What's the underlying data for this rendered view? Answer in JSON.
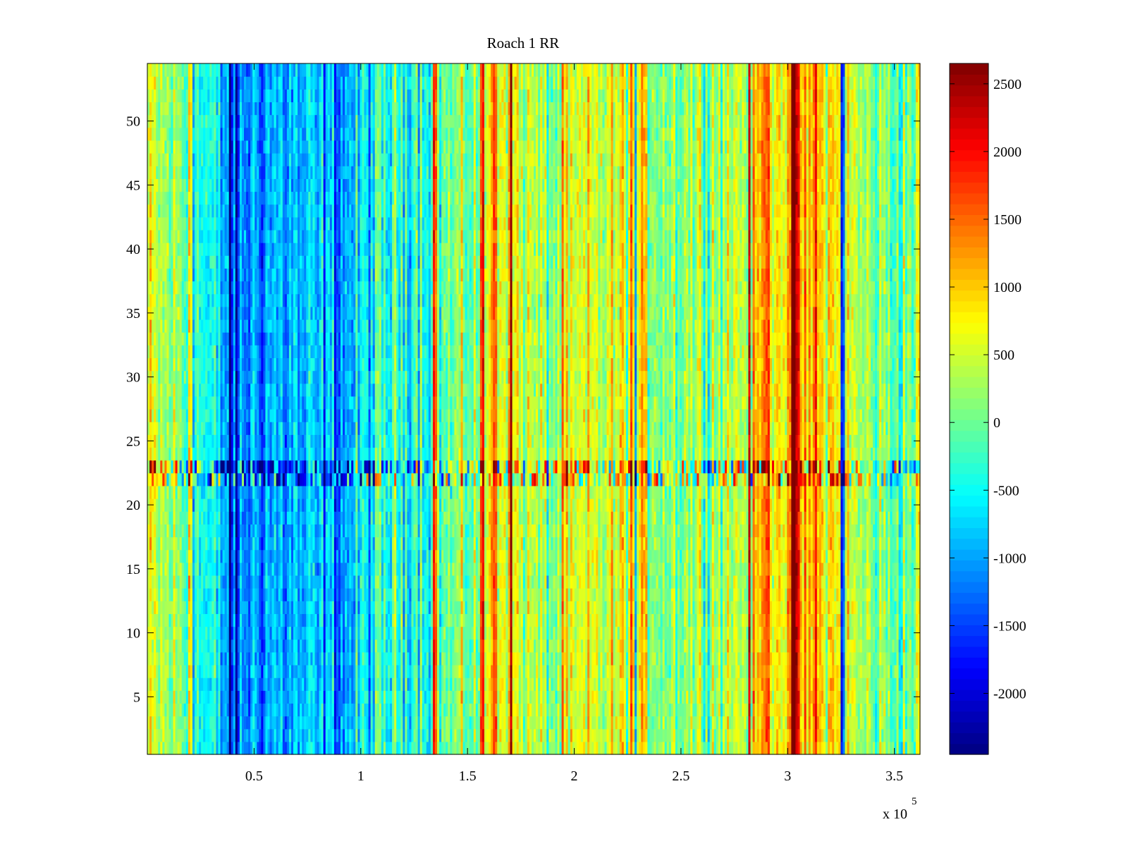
{
  "chart_data": {
    "type": "heatmap",
    "title": "Roach 1 RR",
    "xlabel": "",
    "ylabel": "",
    "x_scale_label": "x 10",
    "x_scale_exponent": "5",
    "xlim": [
      0,
      362000
    ],
    "ylim": [
      0.5,
      54.5
    ],
    "rows": 54,
    "columns": 360,
    "x_ticks": [
      {
        "value": 50000,
        "label": "0.5"
      },
      {
        "value": 100000,
        "label": "1"
      },
      {
        "value": 150000,
        "label": "1.5"
      },
      {
        "value": 200000,
        "label": "2"
      },
      {
        "value": 250000,
        "label": "2.5"
      },
      {
        "value": 300000,
        "label": "3"
      },
      {
        "value": 350000,
        "label": "3.5"
      }
    ],
    "y_ticks": [
      {
        "value": 5,
        "label": "5"
      },
      {
        "value": 10,
        "label": "10"
      },
      {
        "value": 15,
        "label": "15"
      },
      {
        "value": 20,
        "label": "20"
      },
      {
        "value": 25,
        "label": "25"
      },
      {
        "value": 30,
        "label": "30"
      },
      {
        "value": 35,
        "label": "35"
      },
      {
        "value": 40,
        "label": "40"
      },
      {
        "value": 45,
        "label": "45"
      },
      {
        "value": 50,
        "label": "50"
      }
    ],
    "colorbar": {
      "colormap": "jet",
      "clim": [
        -2450,
        2650
      ],
      "ticks": [
        {
          "value": 2500,
          "label": "2500"
        },
        {
          "value": 2000,
          "label": "2000"
        },
        {
          "value": 1500,
          "label": "1500"
        },
        {
          "value": 1000,
          "label": "1000"
        },
        {
          "value": 500,
          "label": "500"
        },
        {
          "value": 0,
          "label": "0"
        },
        {
          "value": -500,
          "label": "-500"
        },
        {
          "value": -1000,
          "label": "-1000"
        },
        {
          "value": -1500,
          "label": "-1500"
        },
        {
          "value": -2000,
          "label": "-2000"
        }
      ]
    },
    "column_trend": [
      {
        "x": 0,
        "value": 400
      },
      {
        "x": 15000,
        "value": 100
      },
      {
        "x": 25000,
        "value": -400
      },
      {
        "x": 40000,
        "value": -1100
      },
      {
        "x": 60000,
        "value": -900
      },
      {
        "x": 75000,
        "value": -1000
      },
      {
        "x": 90000,
        "value": -1000
      },
      {
        "x": 105000,
        "value": -600
      },
      {
        "x": 120000,
        "value": -200
      },
      {
        "x": 140000,
        "value": -100
      },
      {
        "x": 155000,
        "value": 200
      },
      {
        "x": 160000,
        "value": 800
      },
      {
        "x": 170000,
        "value": 700
      },
      {
        "x": 185000,
        "value": 100
      },
      {
        "x": 200000,
        "value": 300
      },
      {
        "x": 215000,
        "value": 500
      },
      {
        "x": 230000,
        "value": 600
      },
      {
        "x": 245000,
        "value": 200
      },
      {
        "x": 260000,
        "value": 300
      },
      {
        "x": 280000,
        "value": 500
      },
      {
        "x": 290000,
        "value": 1100
      },
      {
        "x": 305000,
        "value": 900
      },
      {
        "x": 320000,
        "value": 800
      },
      {
        "x": 335000,
        "value": 200
      },
      {
        "x": 350000,
        "value": 0
      },
      {
        "x": 362000,
        "value": 200
      }
    ],
    "stripes": [
      {
        "x": 39000,
        "delta": -1300
      },
      {
        "x": 42000,
        "delta": -800
      },
      {
        "x": 20000,
        "delta": 1200
      },
      {
        "x": 135000,
        "delta": 1800
      },
      {
        "x": 157000,
        "delta": 1000
      },
      {
        "x": 163000,
        "delta": 1000
      },
      {
        "x": 170000,
        "delta": 1200
      },
      {
        "x": 195000,
        "delta": 900
      },
      {
        "x": 227000,
        "delta": 1200
      },
      {
        "x": 228500,
        "delta": -1500
      },
      {
        "x": 282000,
        "delta": 800
      },
      {
        "x": 290000,
        "delta": 900
      },
      {
        "x": 303000,
        "delta": 1600
      },
      {
        "x": 304500,
        "delta": 1500
      },
      {
        "x": 313000,
        "delta": 800
      },
      {
        "x": 326000,
        "delta": -1700
      }
    ],
    "anomaly_band": {
      "rows": [
        22,
        23
      ],
      "description": "high-variance band with large positive and negative excursions"
    }
  }
}
